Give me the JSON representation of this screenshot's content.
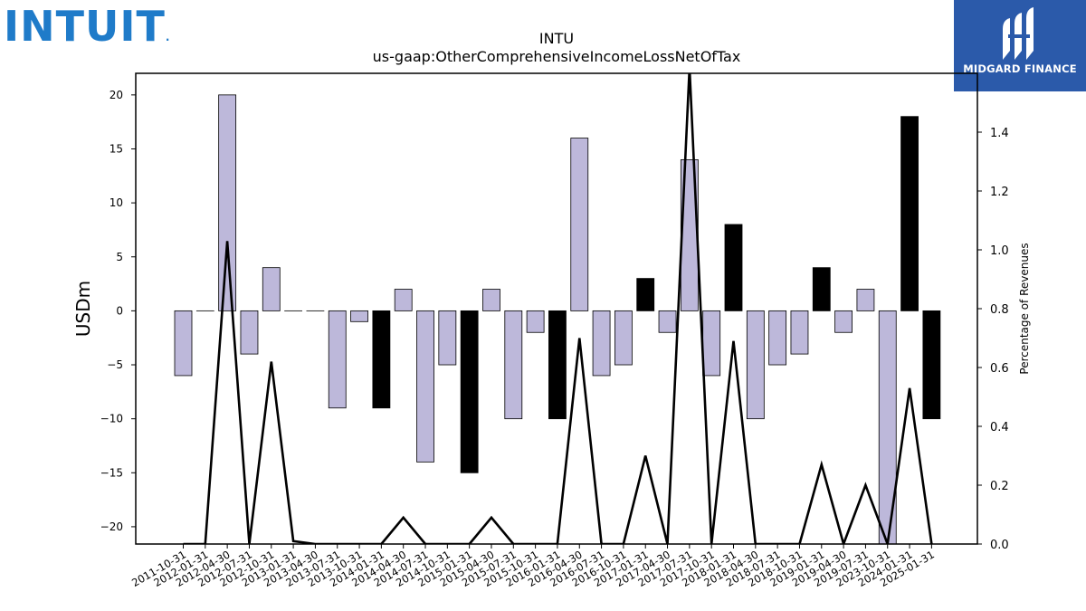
{
  "logo_left": {
    "text": "INTUIT",
    "mark": "."
  },
  "logo_right": {
    "text": "MIDGARD FINANCE"
  },
  "chart_data": {
    "type": "bar",
    "title": "INTU",
    "subtitle": "us-gaap:OtherComprehensiveIncomeLossNetOfTax",
    "ylabel": "USDm",
    "y2label": "Percentage of Revenues",
    "ylim": [
      -21.6,
      22.0
    ],
    "y2lim": [
      0.0,
      1.6
    ],
    "yticks": [
      -20,
      -15,
      -10,
      -5,
      0,
      5,
      10,
      15,
      20
    ],
    "y2ticks": [
      0.0,
      0.2,
      0.4,
      0.6,
      0.8,
      1.0,
      1.2,
      1.4
    ],
    "grid": false,
    "colors": {
      "bar_light": "#bdb8da",
      "bar_dark": "#000000",
      "line": "#000000"
    },
    "categories": [
      "2011-10-31",
      "2012-01-31",
      "2012-04-30",
      "2012-07-31",
      "2012-10-31",
      "2013-01-31",
      "2013-04-30",
      "2013-07-31",
      "2013-10-31",
      "2014-01-31",
      "2014-04-30",
      "2014-07-31",
      "2014-10-31",
      "2015-01-31",
      "2015-04-30",
      "2015-07-31",
      "2015-10-31",
      "2016-01-31",
      "2016-04-30",
      "2016-07-31",
      "2016-10-31",
      "2017-01-31",
      "2017-04-30",
      "2017-07-31",
      "2017-10-31",
      "2018-01-31",
      "2018-04-30",
      "2018-07-31",
      "2018-10-31",
      "2019-01-31",
      "2019-04-30",
      "2019-07-31",
      "2023-10-31",
      "2024-01-31",
      "2025-01-31"
    ],
    "series": [
      {
        "type": "bar",
        "axis": "left",
        "values": [
          -6,
          0,
          20,
          -4,
          4,
          0,
          0,
          -9,
          -1,
          -9,
          2,
          -14,
          -5,
          -15,
          2,
          -10,
          -2,
          -10,
          16,
          -6,
          -5,
          3,
          -2,
          14,
          -6,
          8,
          -10,
          -5,
          -4,
          4,
          -2,
          2,
          -22,
          18,
          -10
        ],
        "dark": [
          false,
          false,
          false,
          false,
          false,
          false,
          false,
          false,
          false,
          true,
          false,
          false,
          false,
          true,
          false,
          false,
          false,
          true,
          false,
          false,
          false,
          true,
          false,
          false,
          false,
          true,
          false,
          false,
          false,
          true,
          false,
          false,
          false,
          true,
          true
        ]
      },
      {
        "type": "line",
        "axis": "right",
        "values": [
          0,
          0,
          1.03,
          0,
          0.62,
          0.01,
          0,
          0,
          0,
          0,
          0.09,
          0,
          0,
          0,
          0.09,
          0,
          0,
          0,
          0.7,
          0,
          0,
          0.3,
          0,
          1.62,
          0,
          0.69,
          0,
          0,
          0,
          0.27,
          0,
          0.2,
          0,
          0.53,
          0
        ]
      }
    ]
  }
}
